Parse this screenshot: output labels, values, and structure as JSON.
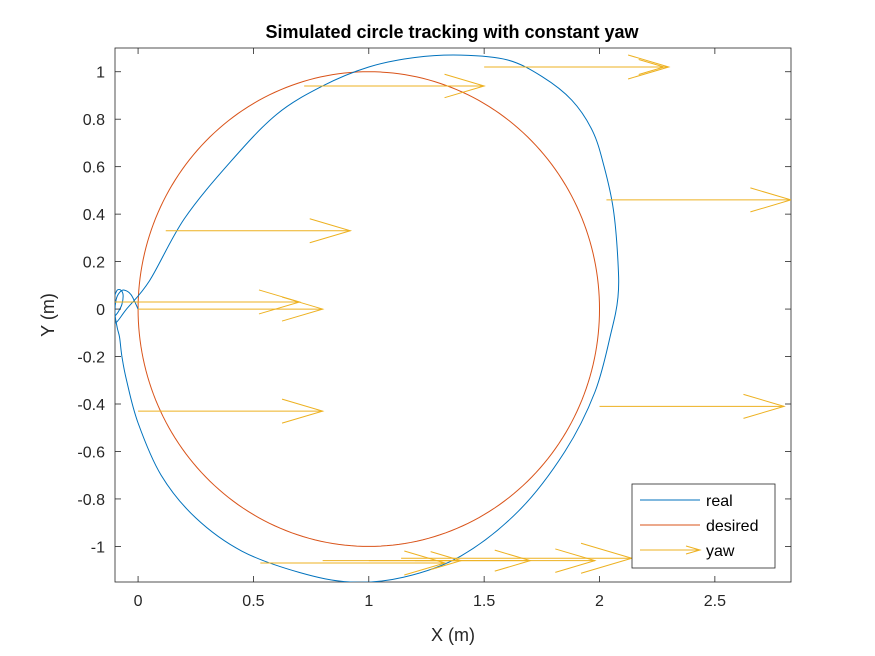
{
  "chart_data": {
    "type": "line",
    "title": "Simulated circle tracking with constant yaw",
    "xlabel": "X (m)",
    "ylabel": "Y (m)",
    "xlim": [
      -0.1,
      2.83
    ],
    "ylim": [
      -1.15,
      1.1
    ],
    "x_ticks": [
      0,
      0.5,
      1,
      1.5,
      2,
      2.5
    ],
    "x_tick_labels": [
      "0",
      "0.5",
      "1",
      "1.5",
      "2",
      "2.5"
    ],
    "y_ticks": [
      1,
      0.8,
      0.6,
      0.4,
      0.2,
      0,
      -0.2,
      -0.4,
      -0.6,
      -0.8,
      -1
    ],
    "y_tick_labels": [
      "1",
      "0.8",
      "0.6",
      "0.4",
      "0.2",
      "0",
      "-0.2",
      "-0.4",
      "-0.6",
      "-0.8",
      "-1"
    ],
    "grid": false,
    "legend_position": "bottom-right",
    "colors": {
      "real": "#0072BD",
      "desired": "#D95319",
      "yaw": "#EDB120"
    },
    "series": [
      {
        "name": "real",
        "x": [
          0.0,
          -0.03,
          -0.06,
          -0.08,
          -0.095,
          -0.1,
          -0.09,
          -0.08,
          -0.07,
          -0.05,
          0.0,
          0.1,
          0.25,
          0.45,
          0.7,
          0.92,
          1.15,
          1.4,
          1.65,
          1.85,
          1.98,
          2.05,
          2.08,
          2.08,
          2.06,
          2.02,
          1.97,
          1.88,
          1.75,
          1.6,
          1.4,
          1.2,
          1.0,
          0.8,
          0.6,
          0.4,
          0.2,
          0.05,
          -0.05,
          -0.1,
          -0.12,
          -0.11,
          -0.1,
          -0.09,
          -0.075,
          -0.065,
          -0.07,
          -0.085,
          -0.1
        ],
        "y": [
          0.0,
          0.06,
          0.08,
          0.07,
          0.04,
          -0.02,
          -0.08,
          -0.12,
          -0.2,
          -0.3,
          -0.48,
          -0.7,
          -0.88,
          -1.02,
          -1.11,
          -1.15,
          -1.13,
          -1.04,
          -0.85,
          -0.6,
          -0.35,
          -0.1,
          0.05,
          0.2,
          0.42,
          0.6,
          0.75,
          0.88,
          0.98,
          1.05,
          1.07,
          1.06,
          1.02,
          0.94,
          0.82,
          0.62,
          0.38,
          0.12,
          0.0,
          -0.06,
          -0.02,
          0.03,
          0.06,
          0.08,
          0.08,
          0.06,
          0.02,
          -0.01,
          -0.03
        ]
      },
      {
        "name": "desired",
        "center": [
          1.0,
          0.0
        ],
        "radius": 1.0
      }
    ],
    "quiver": {
      "name": "yaw",
      "start_x": [
        0.0,
        -0.1,
        0.12,
        2.03,
        2.0,
        1.78,
        0.72,
        0.53,
        0.0,
        1.14,
        1.5,
        1.2,
        1.0,
        0.8
      ],
      "start_y": [
        0.0,
        0.03,
        0.33,
        0.46,
        -0.41,
        1.02,
        0.94,
        -1.07,
        -0.43,
        -1.05,
        1.02,
        -1.06,
        -1.06,
        -1.06
      ],
      "end_x": [
        0.8,
        0.7,
        0.92,
        2.83,
        2.8,
        2.28,
        1.5,
        1.33,
        0.8,
        2.14,
        2.3,
        1.98,
        1.7,
        1.4
      ],
      "end_y": [
        0.0,
        0.03,
        0.33,
        0.46,
        -0.41,
        1.02,
        0.94,
        -1.07,
        -0.43,
        -1.05,
        1.02,
        -1.06,
        -1.06,
        -1.06
      ]
    },
    "legend": [
      "real",
      "desired",
      "yaw"
    ]
  }
}
